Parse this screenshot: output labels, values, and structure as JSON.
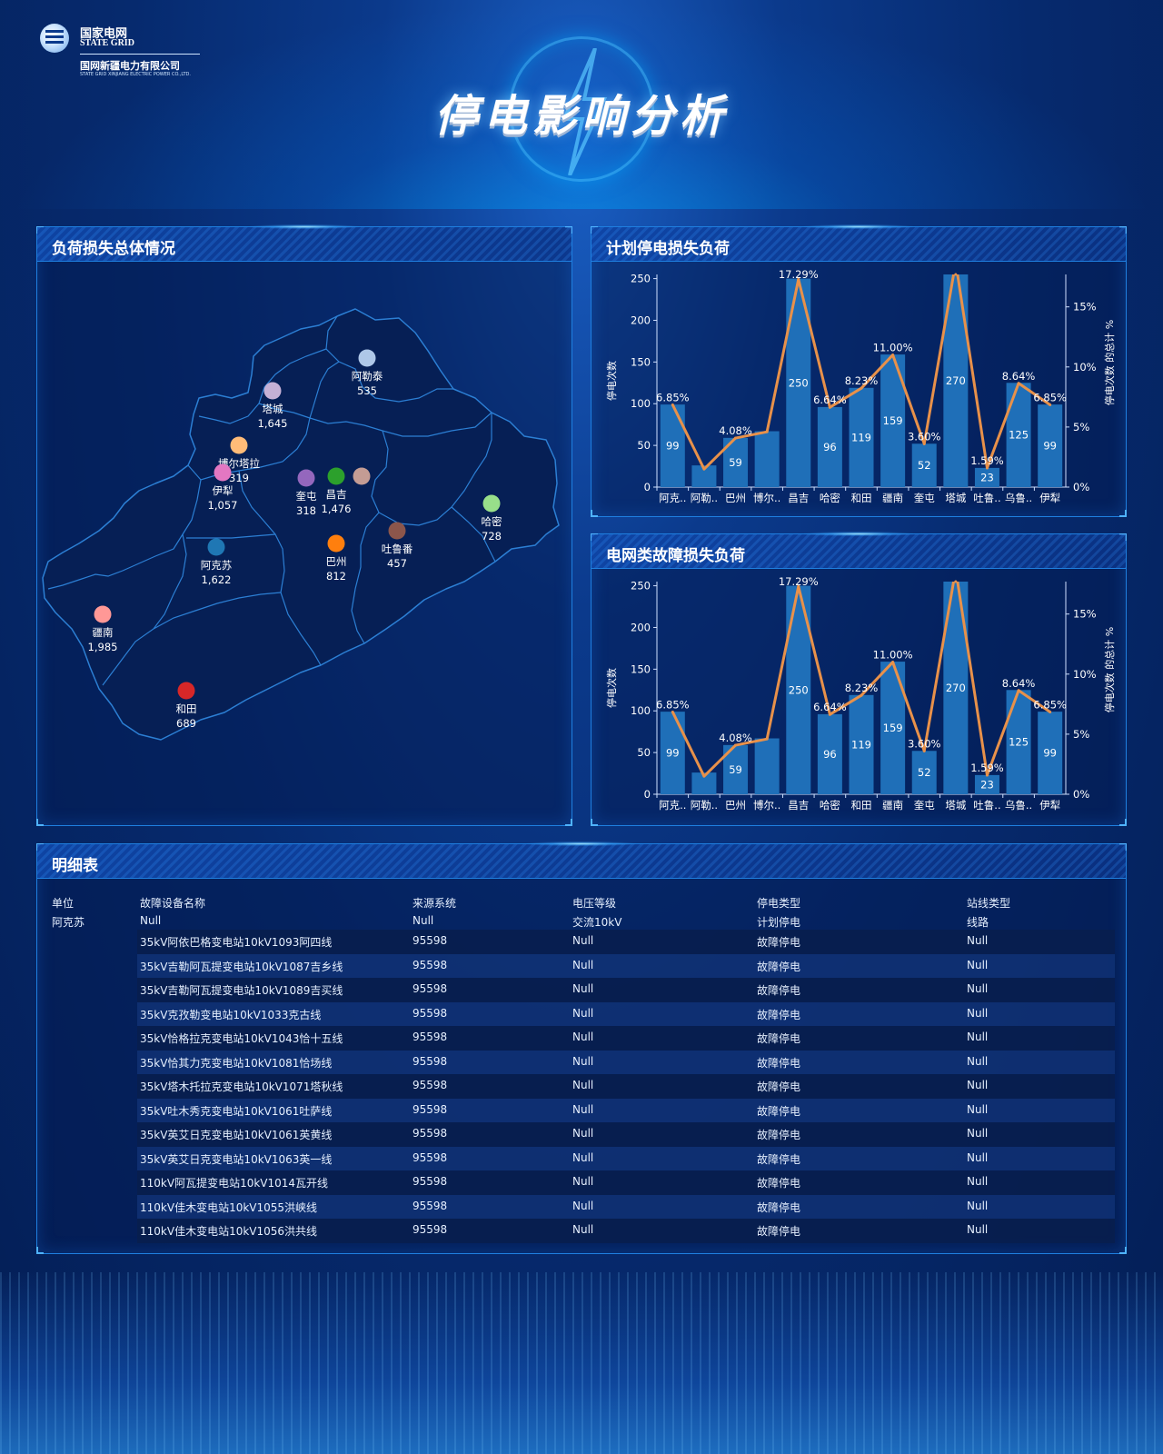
{
  "header": {
    "logo_cn": "国家电网",
    "logo_en": "STATE GRID",
    "logo_company": "国网新疆电力有限公司",
    "logo_company_en": "STATE GRID XINJIANG ELECTRIC POWER CO.,LTD.",
    "title": "停电影响分析"
  },
  "map_panel": {
    "title": "负荷损失总体情况",
    "regions": [
      {
        "name": "阿勒泰",
        "value": "535",
        "color": "#aec7e8"
      },
      {
        "name": "塔城",
        "value": "1,645",
        "color": "#c5b0d5"
      },
      {
        "name": "博尔塔拉",
        "value": "319",
        "color": "#ffbb78"
      },
      {
        "name": "伊犁",
        "value": "1,057",
        "color": "#e377c2"
      },
      {
        "name": "奎屯",
        "value": "318",
        "color": "#9467bd"
      },
      {
        "name": "昌吉",
        "value": "1,476",
        "color": "#2ca02c"
      },
      {
        "name": "",
        "value": "",
        "color": "#c49c94"
      },
      {
        "name": "哈密",
        "value": "728",
        "color": "#98df8a"
      },
      {
        "name": "吐鲁番",
        "value": "457",
        "color": "#8c564b"
      },
      {
        "name": "巴州",
        "value": "812",
        "color": "#ff7f0e"
      },
      {
        "name": "阿克苏",
        "value": "1,622",
        "color": "#1f77b4"
      },
      {
        "name": "疆南",
        "value": "1,985",
        "color": "#ff9896"
      },
      {
        "name": "和田",
        "value": "689",
        "color": "#d62728"
      }
    ]
  },
  "plan_panel": {
    "title": "计划停电损失负荷",
    "chart_data": {
      "type": "bar",
      "categories": [
        "阿克..",
        "阿勒..",
        "巴州",
        "博尔..",
        "昌吉",
        "哈密",
        "和田",
        "疆南",
        "奎屯",
        "塔城",
        "吐鲁..",
        "乌鲁..",
        "伊犁"
      ],
      "series": [
        {
          "name": "停电次数",
          "kind": "bar",
          "values": [
            99,
            26,
            59,
            67,
            250,
            96,
            119,
            159,
            52,
            270,
            23,
            125,
            99
          ],
          "labels": [
            "99",
            "",
            "59",
            "",
            "250",
            "96",
            "119",
            "159",
            "52",
            "270",
            "23",
            "125",
            "99"
          ]
        },
        {
          "name": "停电次数 的总计 %",
          "kind": "line",
          "values": [
            6.85,
            1.5,
            4.08,
            4.6,
            17.29,
            6.64,
            8.23,
            11.0,
            3.6,
            18.7,
            1.59,
            8.64,
            6.85
          ],
          "labels": [
            "6.85%",
            "",
            "4.08%",
            "",
            "17.29%",
            "6.64%",
            "8.23%",
            "11.00%",
            "3.60%",
            "",
            "1.59%",
            "8.64%",
            "6.85%"
          ]
        }
      ],
      "ylabel": "停电次数",
      "y2label": "停电次数 的总计 %",
      "ylim": [
        0,
        255
      ],
      "y2lim": [
        0,
        17.7
      ],
      "yticks": [
        "0",
        "50",
        "100",
        "150",
        "200",
        "250"
      ],
      "y2ticks": [
        "0%",
        "5%",
        "10%",
        "15%"
      ],
      "bar_color": "#1f6fb8",
      "line_color": "#e8914a"
    }
  },
  "grid_panel": {
    "title": "电网类故障损失负荷",
    "chart_data": {
      "type": "bar",
      "categories": [
        "阿克..",
        "阿勒..",
        "巴州",
        "博尔..",
        "昌吉",
        "哈密",
        "和田",
        "疆南",
        "奎屯",
        "塔城",
        "吐鲁..",
        "乌鲁..",
        "伊犁"
      ],
      "series": [
        {
          "name": "停电次数",
          "kind": "bar",
          "values": [
            99,
            26,
            59,
            67,
            250,
            96,
            119,
            159,
            52,
            270,
            23,
            125,
            99
          ],
          "labels": [
            "99",
            "",
            "59",
            "",
            "250",
            "96",
            "119",
            "159",
            "52",
            "270",
            "23",
            "125",
            "99"
          ]
        },
        {
          "name": "停电次数 的总计 %",
          "kind": "line",
          "values": [
            6.85,
            1.5,
            4.08,
            4.6,
            17.29,
            6.64,
            8.23,
            11.0,
            3.6,
            18.7,
            1.59,
            8.64,
            6.85
          ],
          "labels": [
            "6.85%",
            "",
            "4.08%",
            "",
            "17.29%",
            "6.64%",
            "8.23%",
            "11.00%",
            "3.60%",
            "",
            "1.59%",
            "8.64%",
            "6.85%"
          ]
        }
      ],
      "ylabel": "停电次数",
      "y2label": "停电次数 的总计 %",
      "ylim": [
        0,
        255
      ],
      "y2lim": [
        0,
        17.7
      ],
      "yticks": [
        "0",
        "50",
        "100",
        "150",
        "200",
        "250"
      ],
      "y2ticks": [
        "0%",
        "5%",
        "10%",
        "15%"
      ],
      "bar_color": "#1f6fb8",
      "line_color": "#e8914a"
    }
  },
  "table_panel": {
    "title": "明细表",
    "columns": [
      "单位",
      "故障设备名称",
      "来源系统",
      "电压等级",
      "停电类型",
      "站线类型"
    ],
    "first_row": [
      "阿克苏",
      "Null",
      "Null",
      "交流10kV",
      "计划停电",
      "线路"
    ],
    "rows": [
      [
        "",
        "35kV阿依巴格变电站10kV1093阿四线",
        "95598",
        "Null",
        "故障停电",
        "Null"
      ],
      [
        "",
        "35kV吉勒阿瓦提变电站10kV1087吉乡线",
        "95598",
        "Null",
        "故障停电",
        "Null"
      ],
      [
        "",
        "35kV吉勒阿瓦提变电站10kV1089吉买线",
        "95598",
        "Null",
        "故障停电",
        "Null"
      ],
      [
        "",
        "35kV克孜勒变电站10kV1033克古线",
        "95598",
        "Null",
        "故障停电",
        "Null"
      ],
      [
        "",
        "35kV恰格拉克变电站10kV1043恰十五线",
        "95598",
        "Null",
        "故障停电",
        "Null"
      ],
      [
        "",
        "35kV恰其力克变电站10kV1081恰场线",
        "95598",
        "Null",
        "故障停电",
        "Null"
      ],
      [
        "",
        "35kV塔木托拉克变电站10kV1071塔秋线",
        "95598",
        "Null",
        "故障停电",
        "Null"
      ],
      [
        "",
        "35kV吐木秀克变电站10kV1061吐萨线",
        "95598",
        "Null",
        "故障停电",
        "Null"
      ],
      [
        "",
        "35kV英艾日克变电站10kV1061英黄线",
        "95598",
        "Null",
        "故障停电",
        "Null"
      ],
      [
        "",
        "35kV英艾日克变电站10kV1063英一线",
        "95598",
        "Null",
        "故障停电",
        "Null"
      ],
      [
        "",
        "110kV阿瓦提变电站10kV1014瓦开线",
        "95598",
        "Null",
        "故障停电",
        "Null"
      ],
      [
        "",
        "110kV佳木变电站10kV1055洪峡线",
        "95598",
        "Null",
        "故障停电",
        "Null"
      ],
      [
        "",
        "110kV佳木变电站10kV1056洪共线",
        "95598",
        "Null",
        "故障停电",
        "Null"
      ]
    ]
  }
}
